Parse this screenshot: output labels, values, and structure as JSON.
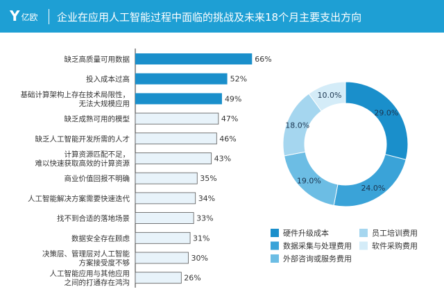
{
  "header": {
    "logo": "亿欧",
    "title": "企业在应用人工智能过程中面临的挑战及未来18个月主要支出方向"
  },
  "chart_data": [
    {
      "type": "bar",
      "orientation": "horizontal",
      "xlim": [
        0,
        100
      ],
      "categories": [
        [
          "缺乏高质量可用数据"
        ],
        [
          "投入成本过高"
        ],
        [
          "基础计算架构上存在技术局限性，",
          "无法大规模应用"
        ],
        [
          "缺乏成熟可用的模型"
        ],
        [
          "缺乏人工智能开发所需的人才"
        ],
        [
          "计算资源匹配不足，",
          "难以快速获取高效的计算资源"
        ],
        [
          "商业价值回报不明确"
        ],
        [
          "人工智能解决方案需要快速迭代"
        ],
        [
          "找不到合适的落地场景"
        ],
        [
          "数据安全存在顾虑"
        ],
        [
          "决策层、管理层对人工智能",
          "方案接受度不够"
        ],
        [
          "人工智能应用与其他应用",
          "之间的打通存在鸿沟"
        ]
      ],
      "values": [
        66,
        52,
        49,
        47,
        46,
        43,
        35,
        34,
        33,
        31,
        30,
        26
      ],
      "value_labels": [
        "66%",
        "52%",
        "49%",
        "47%",
        "46%",
        "43%",
        "35%",
        "34%",
        "33%",
        "31%",
        "30%",
        "26%"
      ],
      "highlight_color": "#1a8fcb",
      "normal_color": "#e8f3fa",
      "highlight_count": 3
    },
    {
      "type": "pie",
      "donut": true,
      "slices": [
        {
          "name": "硬件升级成本",
          "value": 29.0,
          "label": "29.0%",
          "color": "#1a8fcb"
        },
        {
          "name": "数据采集与处理费用",
          "value": 24.0,
          "label": "24.0%",
          "color": "#3aa3d8"
        },
        {
          "name": "外部咨询或服务费用",
          "value": 19.0,
          "label": "19.0%",
          "color": "#6cbde4"
        },
        {
          "name": "员工培训费用",
          "value": 18.0,
          "label": "18.0%",
          "color": "#a5d6ef"
        },
        {
          "name": "软件采购费用",
          "value": 10.0,
          "label": "10.0%",
          "color": "#d4ecf8"
        }
      ],
      "legend": "bottom"
    }
  ]
}
